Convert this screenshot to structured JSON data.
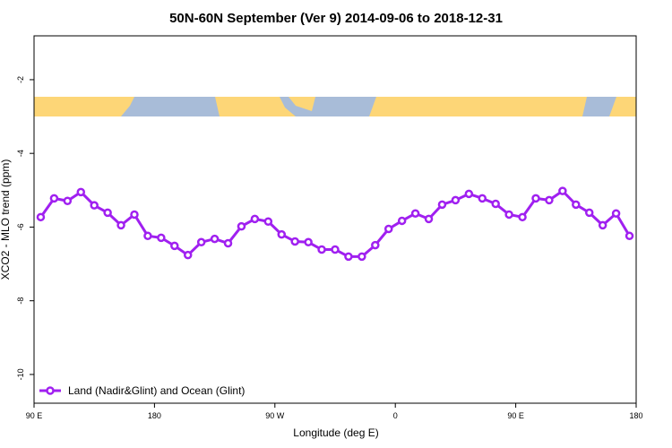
{
  "chart_data": {
    "type": "line",
    "title": "50N-60N September (Ver 9)   2014-09-06 to 2018-12-31",
    "xlabel": "Longitude (deg E)",
    "ylabel": "XCO2 - MLO trend (ppm)",
    "xlim": [
      90,
      540
    ],
    "ylim": [
      -10.78,
      -0.81
    ],
    "xticks": [
      {
        "value": 90,
        "label": "90 E"
      },
      180,
      {
        "value": 270,
        "label": "90 W"
      },
      {
        "value": 360,
        "label": "0"
      },
      {
        "value": 450,
        "label": "90 E"
      },
      {
        "value": 540,
        "label": "180"
      }
    ],
    "yticks": [
      -2,
      -4,
      -6,
      -8,
      -10
    ],
    "legend": "bottom-left",
    "x": [
      95,
      105,
      115,
      125,
      135,
      145,
      155,
      165,
      175,
      185,
      195,
      205,
      215,
      225,
      235,
      245,
      255,
      265,
      275,
      285,
      295,
      305,
      315,
      325,
      335,
      345,
      355,
      365,
      375,
      385,
      395,
      405,
      415,
      425,
      435,
      445,
      455,
      465,
      475,
      485,
      495,
      505,
      515,
      525,
      535
    ],
    "series": [
      {
        "name": "Land (Nadir&Glint) and Ocean (Glint)",
        "color": "#a020f0",
        "values": [
          -5.73,
          -5.22,
          -5.29,
          -5.05,
          -5.41,
          -5.61,
          -5.95,
          -5.66,
          -6.24,
          -6.29,
          -6.51,
          -6.76,
          -6.41,
          -6.32,
          -6.44,
          -5.98,
          -5.78,
          -5.85,
          -6.2,
          -6.39,
          -6.41,
          -6.61,
          -6.61,
          -6.8,
          -6.8,
          -6.49,
          -6.05,
          -5.83,
          -5.63,
          -5.78,
          -5.39,
          -5.27,
          -5.1,
          -5.22,
          -5.37,
          -5.66,
          -5.73,
          -5.22,
          -5.27,
          -5.02,
          -5.39,
          -5.61,
          -5.95,
          -5.63,
          -6.24
        ]
      }
    ]
  }
}
